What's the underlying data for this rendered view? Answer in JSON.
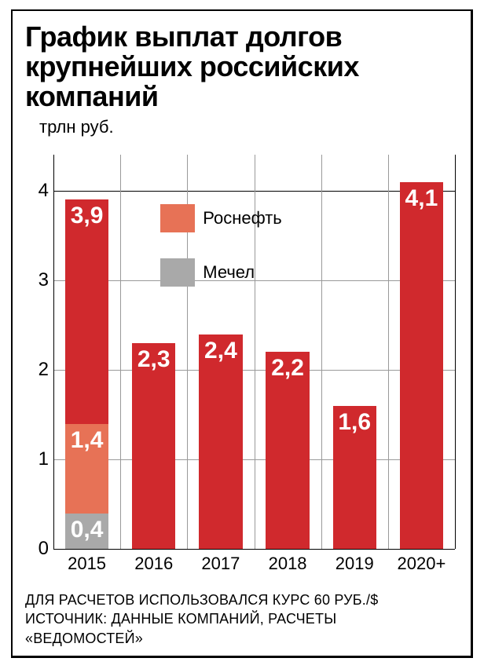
{
  "title": "График выплат долгов крупнейших российских компаний",
  "title_fontsize": 36,
  "ylabel": "трлн руб.",
  "ylabel_fontsize": 22,
  "chart": {
    "type": "bar",
    "ylim": [
      0,
      4.4
    ],
    "yticks": [
      0,
      1,
      2,
      3,
      4
    ],
    "ytick_labels": [
      "0",
      "1",
      "2",
      "3",
      "4"
    ],
    "ytick_fontsize": 24,
    "categories": [
      "2015",
      "2016",
      "2017",
      "2018",
      "2019",
      "2020+"
    ],
    "xtick_fontsize": 22,
    "background_color": "#ffffff",
    "grid_color": "#9a9a9a",
    "axis_color": "#000000",
    "bar_width": 0.65,
    "bars": [
      {
        "total": 3.9,
        "stack": [
          {
            "value": 0.4,
            "color": "#a9a9a9",
            "label": "0,4"
          },
          {
            "value": 1.0,
            "color": "#e77256",
            "label": "1,4"
          },
          {
            "value": 2.5,
            "color": "#d0292d",
            "label": "3,9"
          }
        ]
      },
      {
        "total": 2.3,
        "stack": [
          {
            "value": 2.3,
            "color": "#d0292d",
            "label": "2,3"
          }
        ]
      },
      {
        "total": 2.4,
        "stack": [
          {
            "value": 2.4,
            "color": "#d0292d",
            "label": "2,4"
          }
        ]
      },
      {
        "total": 2.2,
        "stack": [
          {
            "value": 2.2,
            "color": "#d0292d",
            "label": "2,2"
          }
        ]
      },
      {
        "total": 1.6,
        "stack": [
          {
            "value": 1.6,
            "color": "#d0292d",
            "label": "1,6"
          }
        ]
      },
      {
        "total": 4.1,
        "stack": [
          {
            "value": 4.1,
            "color": "#d0292d",
            "label": "4,1"
          }
        ]
      }
    ],
    "value_label_fontsize": 30,
    "value_label_color": "#ffffff"
  },
  "legend": {
    "items": [
      {
        "label": "Роснефть",
        "color": "#e77256"
      },
      {
        "label": "Мечел",
        "color": "#a9a9a9"
      }
    ],
    "fontsize": 22
  },
  "footer_line1": "ДЛЯ РАСЧЕТОВ ИСПОЛЬЗОВАЛСЯ КУРС 60 РУБ./$",
  "footer_line2": "ИСТОЧНИК: ДАННЫЕ КОМПАНИЙ, РАСЧЕТЫ «ВЕДОМОСТЕЙ»",
  "footer_fontsize": 18
}
